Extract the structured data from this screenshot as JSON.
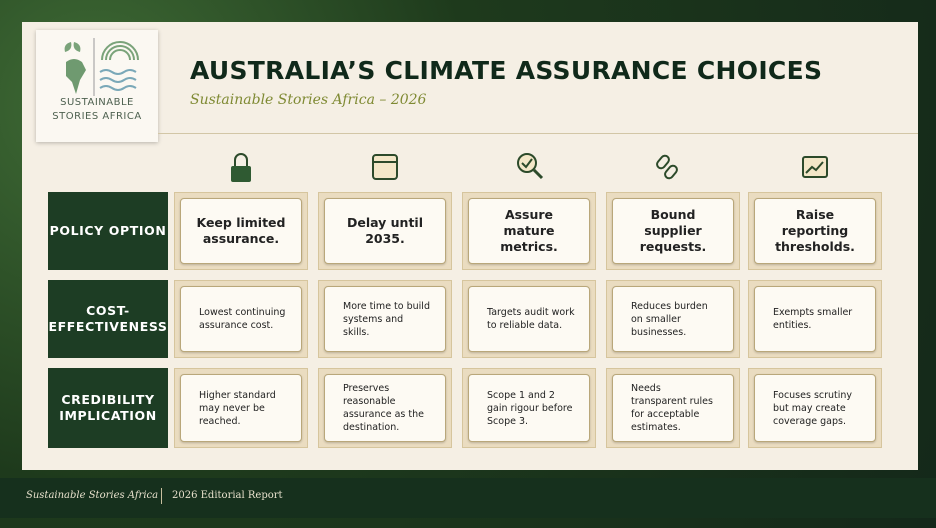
{
  "header": {
    "logo_text": "SUSTAINABLE STORIES AFRICA",
    "title": "AUSTRALIA’S CLIMATE ASSURANCE CHOICES",
    "subtitle": "Sustainable Stories Africa – 2026"
  },
  "table": {
    "row_headers": [
      "POLICY OPTION",
      "COST-EFFECTIVENESS",
      "CREDIBILITY IMPLICATION"
    ],
    "rows": [
      [
        "Keep limited assurance.",
        "Delay until 2035.",
        "Assure mature metrics.",
        "Bound supplier requests.",
        "Raise reporting thresholds."
      ],
      [
        "Lowest continuing assurance cost.",
        "More time to build systems and skills.",
        "Targets audit work to reliable data.",
        "Reduces burden on smaller businesses.",
        "Exempts smaller entities."
      ],
      [
        "Higher standard may never be reached.",
        "Preserves reasonable assurance as the destination.",
        "Scope 1 and 2 gain rigour before Scope 3.",
        "Needs transparent rules for acceptable estimates.",
        "Focuses scrutiny but may create coverage gaps."
      ]
    ]
  },
  "footer": {
    "brand": "Sustainable Stories Africa",
    "report": "2026 Editorial Report"
  }
}
